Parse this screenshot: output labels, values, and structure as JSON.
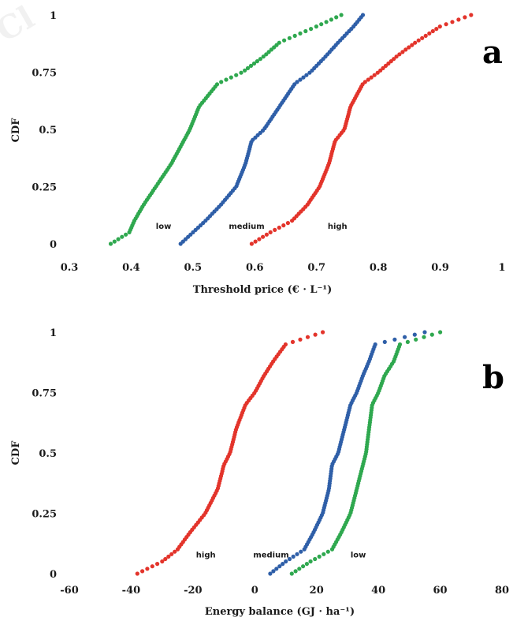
{
  "chart_data": [
    {
      "type": "scatter",
      "panel": "a",
      "xlabel": "Threshold price (€ · L⁻¹)",
      "ylabel": "CDF",
      "xlim": [
        0.3,
        1
      ],
      "ylim": [
        0,
        1
      ],
      "xticks": [
        "0.3",
        "0.4",
        "0.5",
        "0.6",
        "0.7",
        "0.8",
        "0.9",
        "1"
      ],
      "yticks": [
        "0",
        "0.25",
        "0.5",
        "0.75",
        "1"
      ],
      "grid": false,
      "series": [
        {
          "name": "low",
          "color": "#2fa84f",
          "x": [
            0.367,
            0.397,
            0.405,
            0.42,
            0.44,
            0.465,
            0.485,
            0.495,
            0.51,
            0.54,
            0.58,
            0.615,
            0.64,
            0.7,
            0.74
          ],
          "label_x": 0.44
        },
        {
          "name": "medium",
          "color": "#2f5fa8",
          "x": [
            0.48,
            0.5,
            0.52,
            0.545,
            0.57,
            0.585,
            0.595,
            0.615,
            0.64,
            0.665,
            0.69,
            0.715,
            0.735,
            0.76,
            0.775
          ],
          "label_x": 0.558
        },
        {
          "name": "high",
          "color": "#e3342b",
          "x": [
            0.595,
            0.625,
            0.66,
            0.685,
            0.705,
            0.72,
            0.73,
            0.745,
            0.755,
            0.775,
            0.8,
            0.83,
            0.86,
            0.9,
            0.95
          ],
          "label_x": 0.718
        }
      ],
      "cdf": [
        0.0,
        0.05,
        0.1,
        0.17,
        0.25,
        0.35,
        0.45,
        0.5,
        0.6,
        0.7,
        0.75,
        0.82,
        0.88,
        0.95,
        1.0
      ],
      "label_y": 0.08
    },
    {
      "type": "scatter",
      "panel": "b",
      "xlabel": "Energy balance (GJ · ha⁻¹)",
      "ylabel": "CDF",
      "xlim": [
        -60,
        80
      ],
      "ylim": [
        0,
        1
      ],
      "xticks": [
        "-60",
        "-40",
        "-20",
        "0",
        "20",
        "40",
        "60",
        "80"
      ],
      "yticks": [
        "0",
        "0.25",
        "0.5",
        "0.75",
        "1"
      ],
      "grid": false,
      "series": [
        {
          "name": "high",
          "color": "#e3342b",
          "x": [
            -38,
            -30,
            -25,
            -21,
            -16,
            -12,
            -10,
            -8,
            -6,
            -3,
            0,
            3,
            6,
            10,
            22
          ],
          "label_x": -19
        },
        {
          "name": "medium",
          "color": "#2f5fa8",
          "x": [
            5,
            10,
            16,
            19,
            22,
            24,
            25,
            27,
            29,
            31,
            33,
            35,
            37,
            39,
            55
          ],
          "label_x": -0.5
        },
        {
          "name": "low",
          "color": "#2fa84f",
          "x": [
            12,
            18,
            25,
            28,
            31,
            33,
            35,
            36,
            37,
            38,
            40,
            42,
            45,
            47,
            60
          ],
          "label_x": 31
        }
      ],
      "cdf": [
        0.0,
        0.05,
        0.1,
        0.17,
        0.25,
        0.35,
        0.45,
        0.5,
        0.6,
        0.7,
        0.75,
        0.82,
        0.88,
        0.95,
        1.0
      ],
      "label_y": 0.08
    }
  ]
}
